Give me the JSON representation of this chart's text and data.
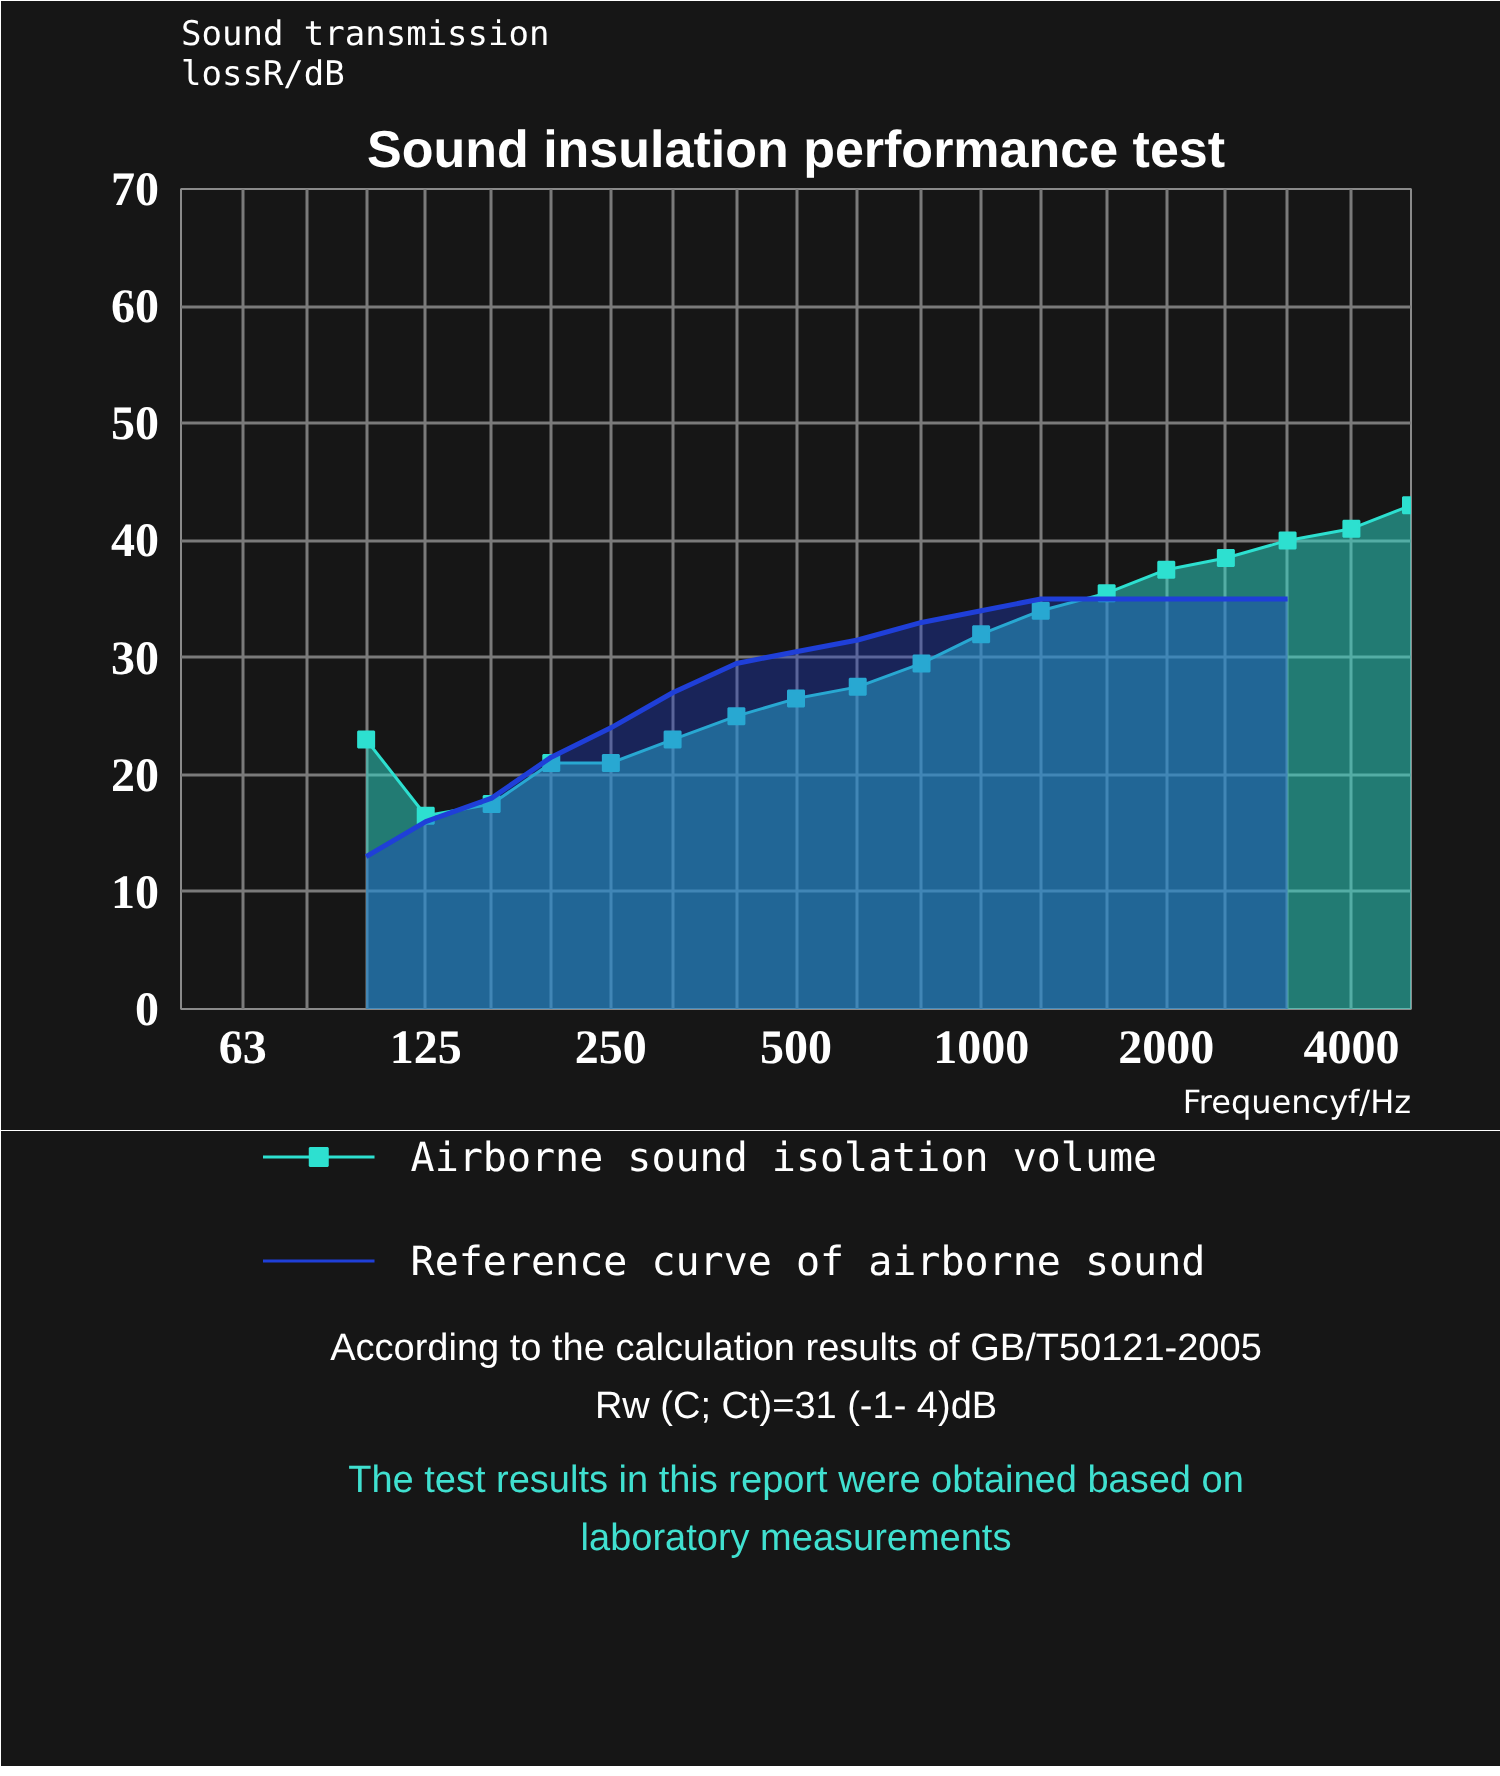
{
  "chart_data": {
    "type": "area",
    "title": "Sound insulation performance test",
    "ylabel": "Sound transmission lossR/dB",
    "xlabel": "Frequencyf/Hz",
    "log": "x",
    "xlim": [
      50,
      5000
    ],
    "xticks": [
      63,
      {
        "value": 80,
        "label": null
      },
      {
        "value": 100,
        "label": null
      },
      125,
      {
        "value": 160,
        "label": null
      },
      {
        "value": 200,
        "label": null
      },
      250,
      {
        "value": 315,
        "label": null
      },
      {
        "value": 400,
        "label": null
      },
      500,
      {
        "value": 630,
        "label": null
      },
      {
        "value": 800,
        "label": null
      },
      1000,
      {
        "value": 1250,
        "label": null
      },
      {
        "value": 1600,
        "label": null
      },
      2000,
      {
        "value": 2500,
        "label": null
      },
      {
        "value": 3150,
        "label": null
      },
      4000,
      {
        "value": 5000,
        "label": null
      }
    ],
    "ylim": [
      0,
      70
    ],
    "yticks": [
      0,
      10,
      20,
      30,
      40,
      50,
      60,
      70
    ],
    "grid": true,
    "legend": "bottom",
    "series": [
      {
        "name": "Airborne sound isolation volume",
        "color": "#2de0d0",
        "marker": "square",
        "x": [
          100,
          125,
          160,
          200,
          250,
          315,
          400,
          500,
          630,
          800,
          1000,
          1250,
          1600,
          2000,
          2500,
          3150,
          4000,
          5000
        ],
        "values": [
          23,
          16.5,
          17.5,
          21,
          21,
          23,
          25,
          26.5,
          27.5,
          29.5,
          32,
          34,
          35.5,
          37.5,
          38.5,
          40,
          41,
          43
        ]
      },
      {
        "name": "Reference curve of airborne sound",
        "color": "#1f3fd8",
        "marker": "none",
        "x": [
          100,
          125,
          160,
          200,
          250,
          315,
          400,
          500,
          630,
          800,
          1000,
          1250,
          1600,
          2000,
          2500,
          3150
        ],
        "values": [
          13,
          16,
          18,
          21.5,
          24,
          27,
          29.5,
          30.5,
          31.5,
          33,
          34,
          35,
          35,
          35,
          35,
          35
        ]
      }
    ],
    "annotations": [
      "According to the calculation results of GB/T50121-2005",
      "Rw (C; Ct)=31 (-1- 4)dB",
      "The test results in this report were obtained based on laboratory measurements"
    ]
  }
}
